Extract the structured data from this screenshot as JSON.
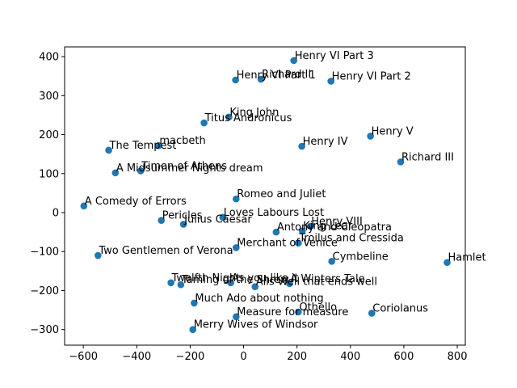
{
  "chart_data": {
    "type": "scatter",
    "title": "",
    "xlabel": "",
    "ylabel": "",
    "xlim": [
      -670,
      830
    ],
    "ylim": [
      -340,
      425
    ],
    "xticks": [
      -600,
      -400,
      -200,
      0,
      200,
      400,
      600,
      800
    ],
    "yticks": [
      -300,
      -200,
      -100,
      0,
      100,
      200,
      300,
      400
    ],
    "grid": false,
    "marker_color": "#1f77b4",
    "points": [
      {
        "label": "Henry VI Part 3",
        "x": 188,
        "y": 390
      },
      {
        "label": "Richard II",
        "x": 65,
        "y": 342
      },
      {
        "label": "Henry VI Part 1",
        "x": -30,
        "y": 340
      },
      {
        "label": "Henry VI Part 2",
        "x": 327,
        "y": 337
      },
      {
        "label": "King John",
        "x": -55,
        "y": 245
      },
      {
        "label": "Titus Andronicus",
        "x": -148,
        "y": 230
      },
      {
        "label": "Henry V",
        "x": 475,
        "y": 196
      },
      {
        "label": "Henry IV",
        "x": 218,
        "y": 170
      },
      {
        "label": "macbeth",
        "x": -318,
        "y": 172
      },
      {
        "label": "The Tempest",
        "x": -505,
        "y": 160
      },
      {
        "label": "Richard III",
        "x": 588,
        "y": 130
      },
      {
        "label": "Timon of Athens",
        "x": -385,
        "y": 107
      },
      {
        "label": "A Midsummer Nights dream",
        "x": -480,
        "y": 102
      },
      {
        "label": "Romeo and Juliet",
        "x": -28,
        "y": 35
      },
      {
        "label": "A Comedy of Errors",
        "x": -598,
        "y": 17
      },
      {
        "label": "Loves Labours Lost",
        "x": -78,
        "y": -12
      },
      {
        "label": "Pericles",
        "x": -308,
        "y": -20
      },
      {
        "label": "Julius Caesar",
        "x": -225,
        "y": -30
      },
      {
        "label": "Henry VIII",
        "x": 250,
        "y": -35
      },
      {
        "label": "King Lear",
        "x": 220,
        "y": -47
      },
      {
        "label": "Antony and Cleopatra",
        "x": 122,
        "y": -50
      },
      {
        "label": "Troilus and Cressida",
        "x": 205,
        "y": -78
      },
      {
        "label": "Merchant of Venice",
        "x": -28,
        "y": -90
      },
      {
        "label": "Two Gentlemen of Verona",
        "x": -545,
        "y": -110
      },
      {
        "label": "Cymbeline",
        "x": 330,
        "y": -125
      },
      {
        "label": "Hamlet",
        "x": 762,
        "y": -128
      },
      {
        "label": "Twelfth Night",
        "x": -272,
        "y": -180
      },
      {
        "label": "Taming of the Shrew",
        "x": -235,
        "y": -185
      },
      {
        "label": "As you like it",
        "x": -48,
        "y": -180
      },
      {
        "label": "Alls Well that ends well",
        "x": 43,
        "y": -190
      },
      {
        "label": "A Winters Tale",
        "x": 172,
        "y": -182
      },
      {
        "label": "Much Ado about nothing",
        "x": -185,
        "y": -232
      },
      {
        "label": "Othello",
        "x": 205,
        "y": -255
      },
      {
        "label": "Coriolanus",
        "x": 480,
        "y": -258
      },
      {
        "label": "Measure for measure",
        "x": -28,
        "y": -267
      },
      {
        "label": "Merry Wives of Windsor",
        "x": -190,
        "y": -300
      }
    ]
  }
}
